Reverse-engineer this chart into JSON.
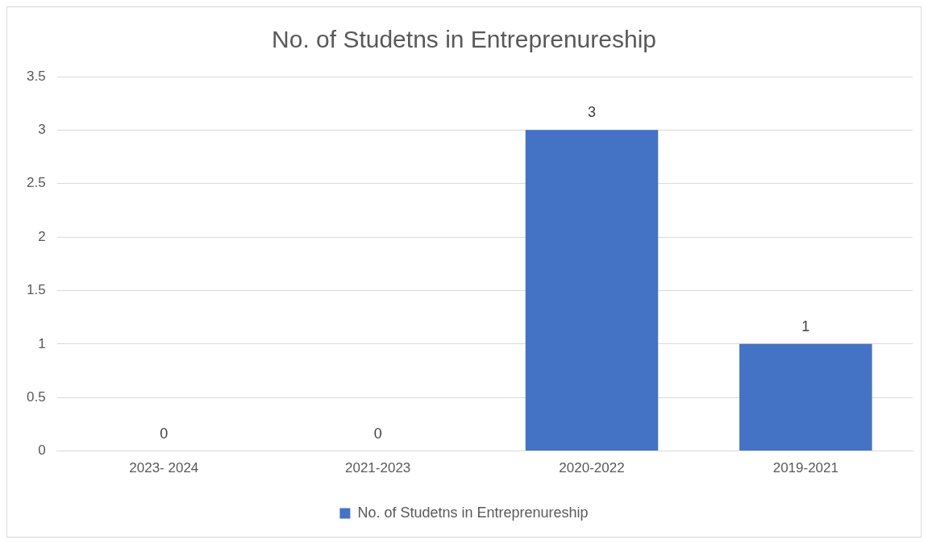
{
  "chart_data": {
    "type": "bar",
    "title": "No. of Studetns in Entreprenureship",
    "categories": [
      "2023- 2024",
      "2021-2023",
      "2020-2022",
      "2019-2021"
    ],
    "series": [
      {
        "name": "No. of Studetns in Entreprenureship",
        "color": "#4472c4",
        "values": [
          0,
          0,
          3,
          1
        ]
      }
    ],
    "ylim": [
      0,
      3.5
    ],
    "yticks": [
      0,
      0.5,
      1,
      1.5,
      2,
      2.5,
      3,
      3.5
    ],
    "grid": "y",
    "legend": "bottom",
    "data_labels": true
  }
}
